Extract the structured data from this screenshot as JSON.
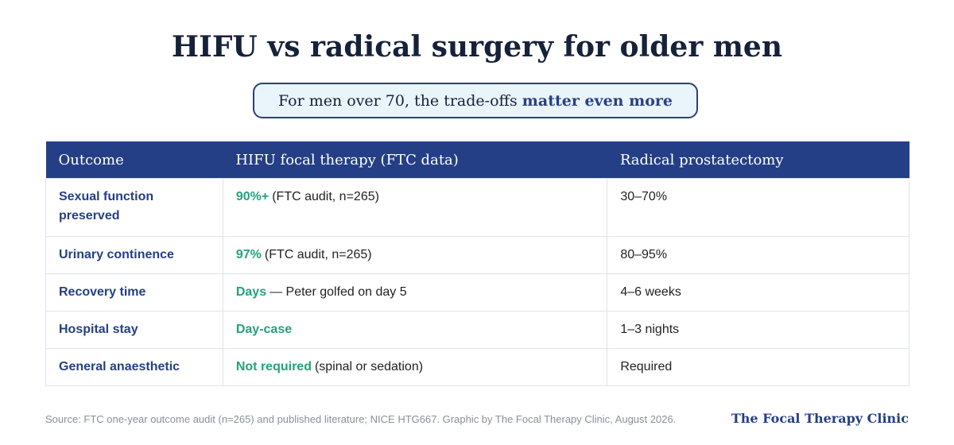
{
  "header": {
    "title": "HIFU vs radical surgery for older men",
    "subtitle": {
      "text": "For men over 70, the trade-offs",
      "emphasis": "matter even more"
    }
  },
  "table": {
    "columns": [
      "Outcome",
      "HIFU focal therapy (FTC data)",
      "Radical prostatectomy"
    ],
    "rows": [
      {
        "outcome": "Sexual function preserved",
        "hifu": {
          "highlight": "90%+",
          "detail": "(FTC audit, n=265)"
        },
        "surgery": "30–70%"
      },
      {
        "outcome": "Urinary continence",
        "hifu": {
          "highlight": "97%",
          "detail": "(FTC audit, n=265)"
        },
        "surgery": "80–95%"
      },
      {
        "outcome": "Recovery time",
        "hifu": {
          "highlight": "Days",
          "detail": "— Peter golfed on day 5"
        },
        "surgery": "4–6 weeks"
      },
      {
        "outcome": "Hospital stay",
        "hifu": {
          "highlight": "Day-case"
        },
        "surgery": "1–3 nights"
      },
      {
        "outcome": "General anaesthetic",
        "hifu": {
          "highlight": "Not required",
          "detail": "(spinal or sedation)"
        },
        "surgery": "Required"
      }
    ]
  },
  "footer": {
    "source": "Source: FTC one-year outcome audit (n=265) and published literature; NICE HTG667. Graphic by The Focal Therapy Clinic, August 2026.",
    "brand": "The Focal Therapy Clinic"
  }
}
